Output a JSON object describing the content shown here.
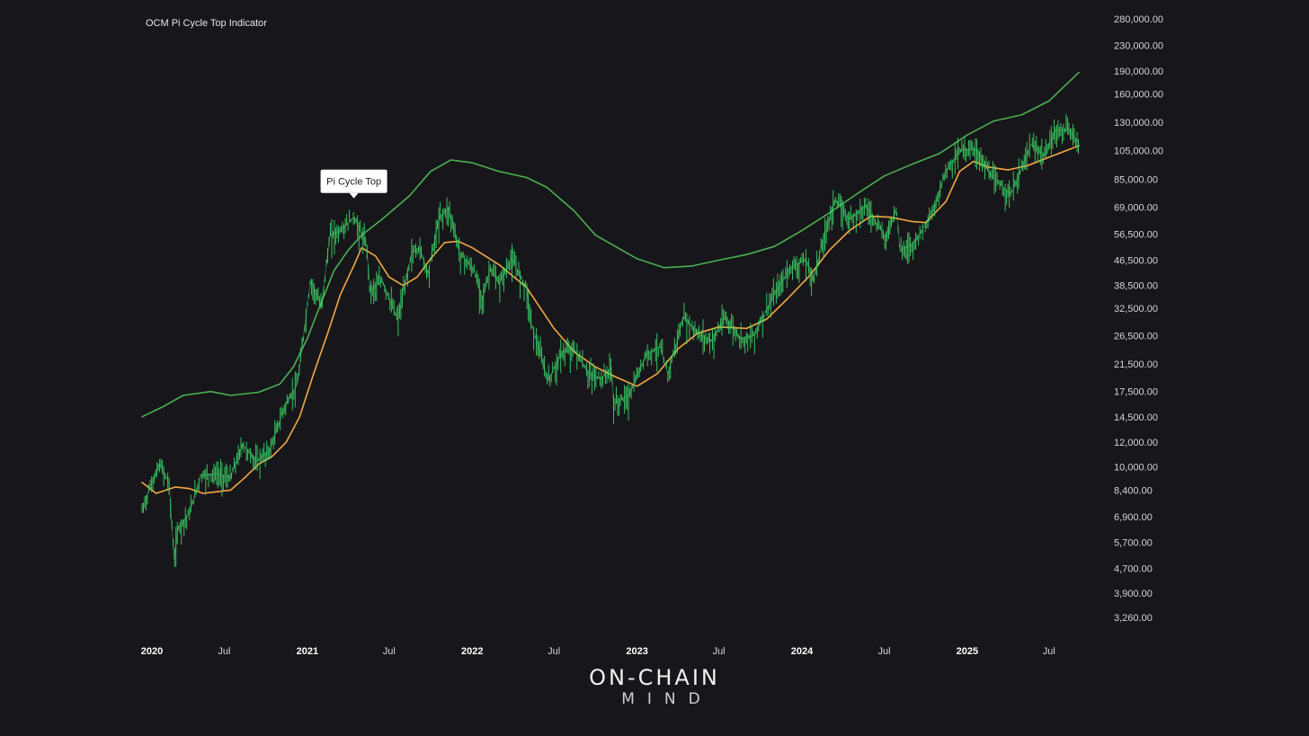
{
  "title": "OCM Pi Cycle Top Indicator",
  "logo": {
    "line1": "ON-CHAIN",
    "line2": "MIND"
  },
  "chart_data": {
    "type": "line",
    "title": "OCM Pi Cycle Top Indicator",
    "y_scale": "log",
    "ylim": [
      3000,
      290000
    ],
    "y_ticks": [
      3260,
      3900,
      4700,
      5700,
      6900,
      8400,
      10000,
      12000,
      14500,
      17500,
      21500,
      26500,
      32500,
      38500,
      46500,
      56500,
      69000,
      85000,
      105000,
      130000,
      160000,
      190000,
      230000,
      280000
    ],
    "y_tick_labels": [
      "3,260.00",
      "3,900.00",
      "4,700.00",
      "5,700.00",
      "6,900.00",
      "8,400.00",
      "10,000.00",
      "12,000.00",
      "14,500.00",
      "17,500.00",
      "21,500.00",
      "26,500.00",
      "32,500.00",
      "38,500.00",
      "46,500.00",
      "56,500.00",
      "69,000.00",
      "85,000.00",
      "105,000.00",
      "130,000.00",
      "160,000.00",
      "190,000.00",
      "230,000.00",
      "280,000.00"
    ],
    "xlim": [
      "2020-01-01",
      "2025-09-05"
    ],
    "x_ticks": [
      {
        "date": "2020-01-01",
        "label": "2020",
        "major": true
      },
      {
        "date": "2020-07-01",
        "label": "Jul",
        "major": false
      },
      {
        "date": "2021-01-01",
        "label": "2021",
        "major": true
      },
      {
        "date": "2021-07-01",
        "label": "Jul",
        "major": false
      },
      {
        "date": "2022-01-01",
        "label": "2022",
        "major": true
      },
      {
        "date": "2022-07-01",
        "label": "Jul",
        "major": false
      },
      {
        "date": "2023-01-01",
        "label": "2023",
        "major": true
      },
      {
        "date": "2023-07-01",
        "label": "Jul",
        "major": false
      },
      {
        "date": "2024-01-01",
        "label": "2024",
        "major": true
      },
      {
        "date": "2024-07-01",
        "label": "Jul",
        "major": false
      },
      {
        "date": "2025-01-01",
        "label": "2025",
        "major": true
      },
      {
        "date": "2025-07-01",
        "label": "Jul",
        "major": false
      }
    ],
    "series": [
      {
        "color": "#4caf50",
        "style": "line",
        "points": [
          [
            "2020-01-01",
            14500
          ],
          [
            "2020-02-15",
            15600
          ],
          [
            "2020-04-01",
            17000
          ],
          [
            "2020-06-01",
            17500
          ],
          [
            "2020-07-15",
            17000
          ],
          [
            "2020-09-15",
            17400
          ],
          [
            "2020-11-01",
            18500
          ],
          [
            "2020-12-01",
            21000
          ],
          [
            "2021-01-01",
            26000
          ],
          [
            "2021-02-01",
            34000
          ],
          [
            "2021-03-01",
            43000
          ],
          [
            "2021-04-01",
            50000
          ],
          [
            "2021-05-01",
            56000
          ],
          [
            "2021-06-15",
            63000
          ],
          [
            "2021-08-15",
            75000
          ],
          [
            "2021-10-01",
            90000
          ],
          [
            "2021-11-15",
            98000
          ],
          [
            "2022-01-01",
            96000
          ],
          [
            "2022-03-01",
            90000
          ],
          [
            "2022-05-01",
            86000
          ],
          [
            "2022-06-15",
            80000
          ],
          [
            "2022-08-15",
            67000
          ],
          [
            "2022-10-01",
            56000
          ],
          [
            "2023-01-01",
            47000
          ],
          [
            "2023-03-01",
            44000
          ],
          [
            "2023-05-01",
            44500
          ],
          [
            "2023-07-01",
            46500
          ],
          [
            "2023-09-01",
            48500
          ],
          [
            "2023-11-01",
            51500
          ],
          [
            "2024-01-01",
            58000
          ],
          [
            "2024-03-01",
            66000
          ],
          [
            "2024-05-01",
            76000
          ],
          [
            "2024-07-01",
            87000
          ],
          [
            "2024-09-01",
            95000
          ],
          [
            "2024-11-01",
            103000
          ],
          [
            "2025-01-01",
            118000
          ],
          [
            "2025-03-01",
            131000
          ],
          [
            "2025-05-01",
            137000
          ],
          [
            "2025-07-01",
            152000
          ],
          [
            "2025-09-05",
            188000
          ]
        ]
      },
      {
        "color": "#f5a742",
        "style": "line",
        "points": [
          [
            "2020-01-01",
            8900
          ],
          [
            "2020-02-01",
            8200
          ],
          [
            "2020-03-15",
            8600
          ],
          [
            "2020-04-15",
            8500
          ],
          [
            "2020-05-15",
            8200
          ],
          [
            "2020-06-15",
            8300
          ],
          [
            "2020-07-15",
            8400
          ],
          [
            "2020-08-15",
            9200
          ],
          [
            "2020-09-15",
            10200
          ],
          [
            "2020-10-15",
            10800
          ],
          [
            "2020-11-15",
            12000
          ],
          [
            "2020-12-15",
            14500
          ],
          [
            "2021-01-15",
            20000
          ],
          [
            "2021-02-15",
            27000
          ],
          [
            "2021-03-15",
            36000
          ],
          [
            "2021-04-15",
            45000
          ],
          [
            "2021-05-01",
            51000
          ],
          [
            "2021-06-01",
            48000
          ],
          [
            "2021-07-01",
            41000
          ],
          [
            "2021-08-01",
            38500
          ],
          [
            "2021-09-01",
            41000
          ],
          [
            "2021-10-01",
            47000
          ],
          [
            "2021-11-01",
            53000
          ],
          [
            "2021-12-01",
            53500
          ],
          [
            "2022-01-01",
            51000
          ],
          [
            "2022-03-01",
            45000
          ],
          [
            "2022-05-01",
            38000
          ],
          [
            "2022-07-01",
            28000
          ],
          [
            "2022-08-15",
            23500
          ],
          [
            "2022-10-01",
            21000
          ],
          [
            "2022-11-15",
            19500
          ],
          [
            "2023-01-01",
            18200
          ],
          [
            "2023-02-15",
            20000
          ],
          [
            "2023-04-01",
            24000
          ],
          [
            "2023-05-15",
            27000
          ],
          [
            "2023-07-01",
            28300
          ],
          [
            "2023-09-01",
            28000
          ],
          [
            "2023-10-15",
            30000
          ],
          [
            "2023-12-01",
            35000
          ],
          [
            "2024-01-15",
            41000
          ],
          [
            "2024-03-01",
            50000
          ],
          [
            "2024-04-15",
            58000
          ],
          [
            "2024-06-01",
            64500
          ],
          [
            "2024-07-15",
            64000
          ],
          [
            "2024-09-01",
            62000
          ],
          [
            "2024-10-01",
            61500
          ],
          [
            "2024-11-15",
            72000
          ],
          [
            "2024-12-15",
            90000
          ],
          [
            "2025-01-15",
            97000
          ],
          [
            "2025-02-15",
            93000
          ],
          [
            "2025-04-01",
            91000
          ],
          [
            "2025-05-15",
            94000
          ],
          [
            "2025-07-01",
            100000
          ],
          [
            "2025-09-05",
            109000
          ]
        ]
      },
      {
        "color": "#3ddc6a",
        "style": "price",
        "points": [
          [
            "2020-01-01",
            7200
          ],
          [
            "2020-01-20",
            8700
          ],
          [
            "2020-02-10",
            10200
          ],
          [
            "2020-03-01",
            8800
          ],
          [
            "2020-03-12",
            5000
          ],
          [
            "2020-03-20",
            6300
          ],
          [
            "2020-04-15",
            7100
          ],
          [
            "2020-05-10",
            9400
          ],
          [
            "2020-06-15",
            9500
          ],
          [
            "2020-07-15",
            9200
          ],
          [
            "2020-08-10",
            11800
          ],
          [
            "2020-09-10",
            10400
          ],
          [
            "2020-10-10",
            11300
          ],
          [
            "2020-11-10",
            15500
          ],
          [
            "2020-12-10",
            18500
          ],
          [
            "2021-01-08",
            40000
          ],
          [
            "2021-02-01",
            33000
          ],
          [
            "2021-02-20",
            56000
          ],
          [
            "2021-03-15",
            58000
          ],
          [
            "2021-04-14",
            64000
          ],
          [
            "2021-05-12",
            52000
          ],
          [
            "2021-05-20",
            37000
          ],
          [
            "2021-06-15",
            40000
          ],
          [
            "2021-07-20",
            30000
          ],
          [
            "2021-08-20",
            49000
          ],
          [
            "2021-09-07",
            51000
          ],
          [
            "2021-09-25",
            42000
          ],
          [
            "2021-10-20",
            64000
          ],
          [
            "2021-11-10",
            68500
          ],
          [
            "2021-12-05",
            49000
          ],
          [
            "2022-01-05",
            43000
          ],
          [
            "2022-01-24",
            35000
          ],
          [
            "2022-02-10",
            44000
          ],
          [
            "2022-03-01",
            39000
          ],
          [
            "2022-03-29",
            47000
          ],
          [
            "2022-05-01",
            38000
          ],
          [
            "2022-05-12",
            29000
          ],
          [
            "2022-06-18",
            19000
          ],
          [
            "2022-07-20",
            23500
          ],
          [
            "2022-08-15",
            24000
          ],
          [
            "2022-09-15",
            20000
          ],
          [
            "2022-10-15",
            19200
          ],
          [
            "2022-11-05",
            21000
          ],
          [
            "2022-11-10",
            16000
          ],
          [
            "2022-12-15",
            17000
          ],
          [
            "2023-01-20",
            23000
          ],
          [
            "2023-02-20",
            24500
          ],
          [
            "2023-03-10",
            20000
          ],
          [
            "2023-04-14",
            30500
          ],
          [
            "2023-05-15",
            27000
          ],
          [
            "2023-06-15",
            25500
          ],
          [
            "2023-07-15",
            30400
          ],
          [
            "2023-08-18",
            26000
          ],
          [
            "2023-09-15",
            26500
          ],
          [
            "2023-10-25",
            34500
          ],
          [
            "2023-12-05",
            44000
          ],
          [
            "2024-01-10",
            46500
          ],
          [
            "2024-01-25",
            40000
          ],
          [
            "2024-02-28",
            62000
          ],
          [
            "2024-03-14",
            73000
          ],
          [
            "2024-04-15",
            63000
          ],
          [
            "2024-05-20",
            70000
          ],
          [
            "2024-07-05",
            55000
          ],
          [
            "2024-07-28",
            69000
          ],
          [
            "2024-08-05",
            50000
          ],
          [
            "2024-09-06",
            53000
          ],
          [
            "2024-10-20",
            68000
          ],
          [
            "2024-11-13",
            90000
          ],
          [
            "2024-12-17",
            106000
          ],
          [
            "2025-01-20",
            106000
          ],
          [
            "2025-02-25",
            86000
          ],
          [
            "2025-04-08",
            76000
          ],
          [
            "2025-05-22",
            110000
          ],
          [
            "2025-06-22",
            101000
          ],
          [
            "2025-07-14",
            122000
          ],
          [
            "2025-08-14",
            123000
          ],
          [
            "2025-09-05",
            111000
          ]
        ]
      }
    ],
    "annotations": [
      {
        "label": "Pi Cycle Top",
        "date": "2021-04-14",
        "value": 64000
      }
    ]
  }
}
